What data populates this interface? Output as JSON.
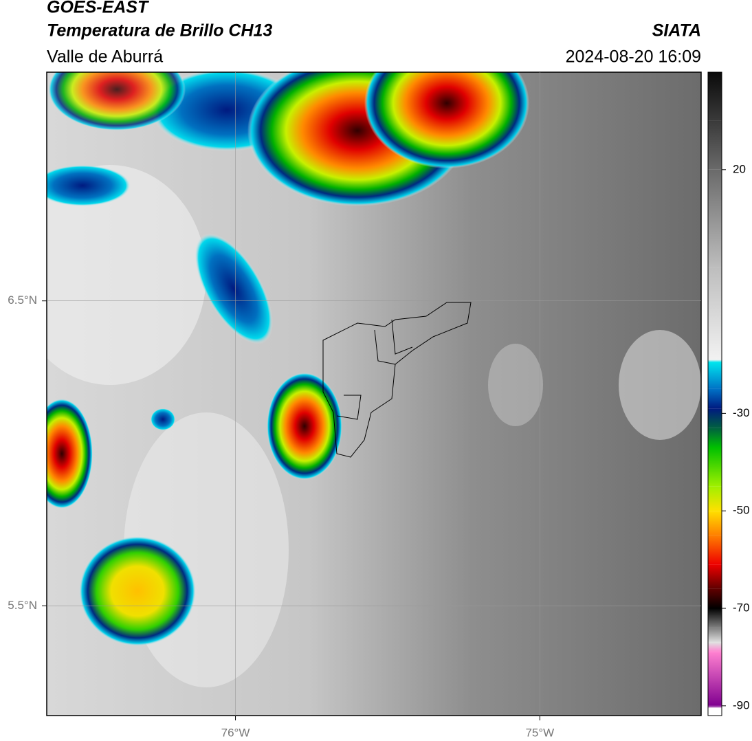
{
  "header": {
    "title": "GOES-EAST",
    "subtitle": "Temperatura de Brillo CH13",
    "region": "Valle de Aburrá",
    "source": "SIATA",
    "timestamp": "2024-08-20 16:09"
  },
  "map": {
    "xlim": [
      -76.62,
      -74.47
    ],
    "ylim": [
      5.14,
      7.25
    ],
    "xticks": [
      {
        "value": -76,
        "label": "76°W"
      },
      {
        "value": -75,
        "label": "75°W"
      }
    ],
    "yticks": [
      {
        "value": 6.5,
        "label": "6.5°N"
      },
      {
        "value": 5.5,
        "label": "5.5°N"
      }
    ],
    "grid": true
  },
  "colorbar": {
    "lim": [
      -92,
      40
    ],
    "ticks": [
      20,
      -30,
      -50,
      -70,
      -90
    ],
    "stops": [
      {
        "value": 40,
        "color": "#0a0a0a"
      },
      {
        "value": 30,
        "color": "#3a3a3a"
      },
      {
        "value": 20,
        "color": "#6a6a6a"
      },
      {
        "value": 0,
        "color": "#bdbdbd"
      },
      {
        "value": -19,
        "color": "#f2f2f2"
      },
      {
        "value": -19.5,
        "color": "#00e5ee"
      },
      {
        "value": -25,
        "color": "#0072c6"
      },
      {
        "value": -29,
        "color": "#001a80"
      },
      {
        "value": -33,
        "color": "#006040"
      },
      {
        "value": -37,
        "color": "#00c000"
      },
      {
        "value": -45,
        "color": "#a0f000"
      },
      {
        "value": -50,
        "color": "#ffe000"
      },
      {
        "value": -55,
        "color": "#ff8000"
      },
      {
        "value": -61,
        "color": "#ee0000"
      },
      {
        "value": -66,
        "color": "#600000"
      },
      {
        "value": -70,
        "color": "#000000"
      },
      {
        "value": -74,
        "color": "#808080"
      },
      {
        "value": -77,
        "color": "#e0e0e0"
      },
      {
        "value": -79,
        "color": "#ff80d0"
      },
      {
        "value": -90,
        "color": "#800090"
      },
      {
        "value": -90.5,
        "color": "#ffffff"
      },
      {
        "value": -92,
        "color": "#ffffff"
      }
    ]
  }
}
